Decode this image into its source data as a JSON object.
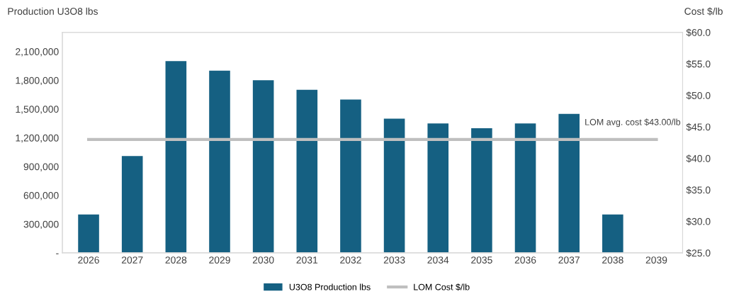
{
  "chart_data": {
    "type": "bar",
    "ylabel": "Production U3O8 lbs",
    "y2label": "Cost $/lb",
    "categories": [
      "2026",
      "2027",
      "2028",
      "2029",
      "2030",
      "2031",
      "2032",
      "2033",
      "2034",
      "2035",
      "2036",
      "2037",
      "2038",
      "2039"
    ],
    "series": [
      {
        "name": "U3O8 Production lbs",
        "color": "#156082",
        "values": [
          400000,
          1010000,
          2000000,
          1900000,
          1800000,
          1700000,
          1600000,
          1400000,
          1350000,
          1300000,
          1350000,
          1450000,
          400000,
          0
        ]
      },
      {
        "name": "LOM Cost $/lb",
        "type": "line",
        "axis": "y2",
        "color": "#bfbfbf",
        "values": [
          43,
          43,
          43,
          43,
          43,
          43,
          43,
          43,
          43,
          43,
          43,
          43,
          43,
          43
        ]
      }
    ],
    "ylim": [
      0,
      2300000
    ],
    "yticks": [
      {
        "value": 0,
        "label": "-"
      },
      {
        "value": 300000,
        "label": "300,000"
      },
      {
        "value": 600000,
        "label": "600,000"
      },
      {
        "value": 900000,
        "label": "900,000"
      },
      {
        "value": 1200000,
        "label": "1,200,000"
      },
      {
        "value": 1500000,
        "label": "1,500,000"
      },
      {
        "value": 1800000,
        "label": "1,800,000"
      },
      {
        "value": 2100000,
        "label": "2,100,000"
      }
    ],
    "y2lim": [
      25,
      60
    ],
    "y2ticks": [
      {
        "value": 25,
        "label": "$25.0"
      },
      {
        "value": 30,
        "label": "$30.0"
      },
      {
        "value": 35,
        "label": "$35.0"
      },
      {
        "value": 40,
        "label": "$40.0"
      },
      {
        "value": 45,
        "label": "$45.0"
      },
      {
        "value": 50,
        "label": "$50.0"
      },
      {
        "value": 55,
        "label": "$55.0"
      },
      {
        "value": 60,
        "label": "$60.0"
      }
    ],
    "annotations": [
      "LOM avg. cost $43.00/lb"
    ],
    "grid": false,
    "legend": "bottom"
  }
}
